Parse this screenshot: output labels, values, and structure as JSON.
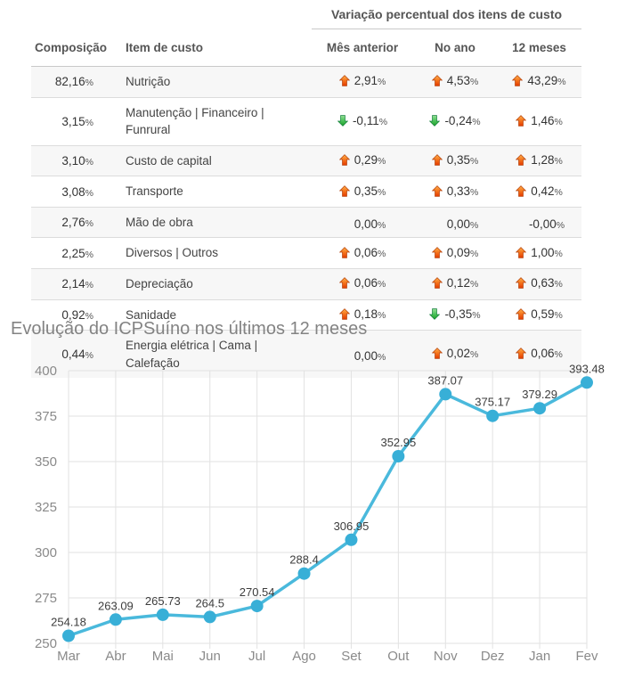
{
  "table": {
    "group_header": "Variação percentual dos itens de custo",
    "columns": [
      "Composição",
      "Item de custo",
      "Mês anterior",
      "No ano",
      "12 meses"
    ],
    "rows": [
      {
        "composicao": "82,16%",
        "item": "Nutrição",
        "variations": [
          {
            "dir": "up",
            "value": "2,91%"
          },
          {
            "dir": "up",
            "value": "4,53%"
          },
          {
            "dir": "up",
            "value": "43,29%"
          }
        ]
      },
      {
        "composicao": "3,15%",
        "item": "Manutenção | Financeiro | Funrural",
        "variations": [
          {
            "dir": "down",
            "value": "-0,11%"
          },
          {
            "dir": "down",
            "value": "-0,24%"
          },
          {
            "dir": "up",
            "value": "1,46%"
          }
        ]
      },
      {
        "composicao": "3,10%",
        "item": "Custo de capital",
        "variations": [
          {
            "dir": "up",
            "value": "0,29%"
          },
          {
            "dir": "up",
            "value": "0,35%"
          },
          {
            "dir": "up",
            "value": "1,28%"
          }
        ]
      },
      {
        "composicao": "3,08%",
        "item": "Transporte",
        "variations": [
          {
            "dir": "up",
            "value": "0,35%"
          },
          {
            "dir": "up",
            "value": "0,33%"
          },
          {
            "dir": "up",
            "value": "0,42%"
          }
        ]
      },
      {
        "composicao": "2,76%",
        "item": "Mão de obra",
        "variations": [
          {
            "dir": "none",
            "value": "0,00%"
          },
          {
            "dir": "none",
            "value": "0,00%"
          },
          {
            "dir": "none",
            "value": "-0,00%"
          }
        ]
      },
      {
        "composicao": "2,25%",
        "item": "Diversos | Outros",
        "variations": [
          {
            "dir": "up",
            "value": "0,06%"
          },
          {
            "dir": "up",
            "value": "0,09%"
          },
          {
            "dir": "up",
            "value": "1,00%"
          }
        ]
      },
      {
        "composicao": "2,14%",
        "item": "Depreciação",
        "variations": [
          {
            "dir": "up",
            "value": "0,06%"
          },
          {
            "dir": "up",
            "value": "0,12%"
          },
          {
            "dir": "up",
            "value": "0,63%"
          }
        ]
      },
      {
        "composicao": "0,92%",
        "item": "Sanidade",
        "variations": [
          {
            "dir": "up",
            "value": "0,18%"
          },
          {
            "dir": "down",
            "value": "-0,35%"
          },
          {
            "dir": "up",
            "value": "0,59%"
          }
        ]
      },
      {
        "composicao": "0,44%",
        "item": "Energia elétrica | Cama |\nCalefação",
        "variations": [
          {
            "dir": "none",
            "value": "0,00%"
          },
          {
            "dir": "up",
            "value": "0,02%"
          },
          {
            "dir": "up",
            "value": "0,06%"
          }
        ]
      }
    ]
  },
  "chart_data": {
    "type": "line",
    "title": "Evolução do ICPSuíno nos últimos 12 meses",
    "x": [
      "Mar",
      "Abr",
      "Mai",
      "Jun",
      "Jul",
      "Ago",
      "Set",
      "Out",
      "Nov",
      "Dez",
      "Jan",
      "Fev"
    ],
    "series": [
      {
        "name": "ICPSuíno",
        "values": [
          254.18,
          263.09,
          265.73,
          264.5,
          270.54,
          288.4,
          306.95,
          352.95,
          387.07,
          375.17,
          379.29,
          393.48
        ]
      }
    ],
    "point_labels": [
      "254.18",
      "263.09",
      "265.73",
      "264.5",
      "270.54",
      "288.4",
      "306.95",
      "352.95",
      "387.07",
      "375.17",
      "379.29",
      "393.48"
    ],
    "ylim": [
      250,
      400
    ],
    "yticks": [
      250,
      275,
      300,
      325,
      350,
      375,
      400
    ],
    "grid": true,
    "legend": "none"
  },
  "colors": {
    "line": "#4ab9dc",
    "point": "#38afd7",
    "grid": "#e2e2e2",
    "axis_text": "#8a8a8a",
    "point_label": "#3d3d3d",
    "up_arrow": "#e8420a",
    "down_arrow": "#1d9c29"
  }
}
